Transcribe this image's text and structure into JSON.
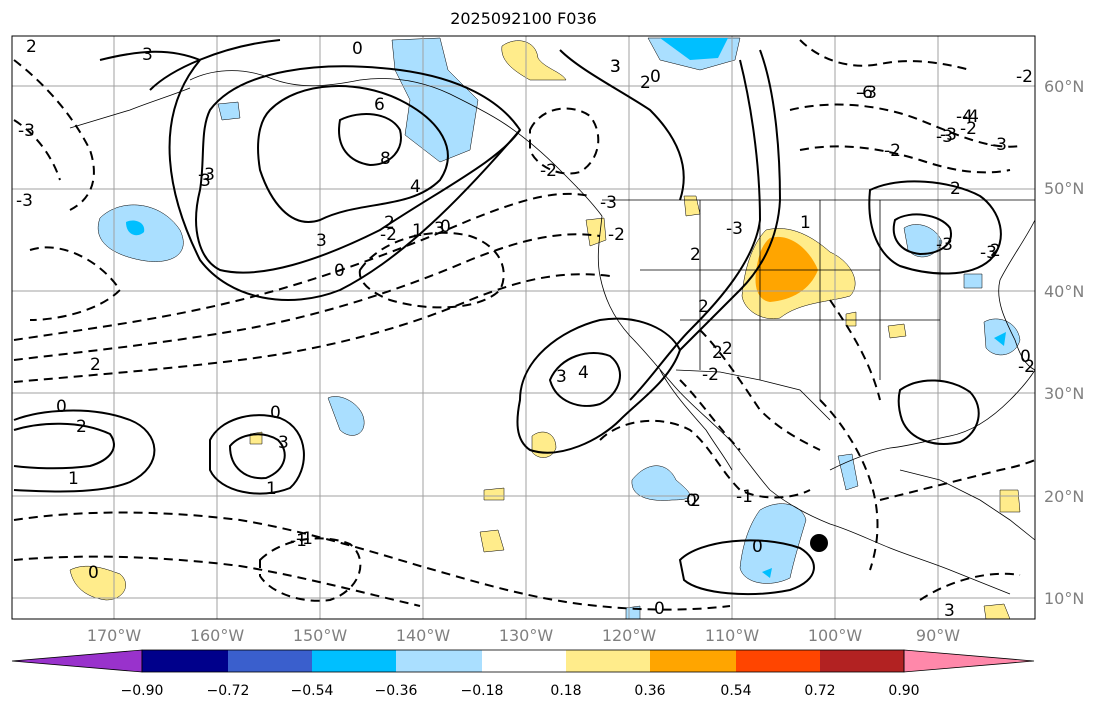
{
  "title": "2025092100 F036",
  "latitude_labels": [
    "60°N",
    "50°N",
    "40°N",
    "30°N",
    "20°N",
    "10°N"
  ],
  "longitude_labels": [
    "170°W",
    "160°W",
    "150°W",
    "140°W",
    "130°W",
    "120°W",
    "110°W",
    "100°W",
    "90°W"
  ],
  "colorbar": {
    "ticks": [
      "−0.90",
      "−0.72",
      "−0.54",
      "−0.36",
      "−0.18",
      "0.18",
      "0.36",
      "0.54",
      "0.72",
      "0.90"
    ],
    "colors": [
      "#9932cc",
      "#00008b",
      "#3a5fcd",
      "#00bfff",
      "#aadfff",
      "#ffffff",
      "#ffec8b",
      "#ffa500",
      "#ff4500",
      "#b22222",
      "#ff88aa"
    ]
  },
  "contour_labels": [
    "2",
    "3",
    "3",
    "0",
    "6",
    "8",
    "3",
    "-3",
    "4",
    "0",
    "3",
    "2",
    "1",
    "3",
    "0",
    "2",
    "0",
    "2",
    "3",
    "3",
    "4",
    "2",
    "-3",
    "-2",
    "-3",
    "-4",
    "-1",
    "1",
    "2",
    "-2",
    "2",
    "-3",
    "-2",
    "-3",
    "-3",
    "-3",
    "-2",
    "-3",
    "-2",
    "-1",
    "3",
    "2",
    "1",
    "2",
    "-6",
    "-4",
    "-3",
    "-2",
    "0",
    "2",
    "-3",
    "-2",
    "0",
    "3",
    "0",
    "-2",
    "2",
    "0",
    "-3",
    "1",
    "0",
    "-2",
    "0",
    "-1",
    "0"
  ],
  "marker": "storm-center-dot"
}
